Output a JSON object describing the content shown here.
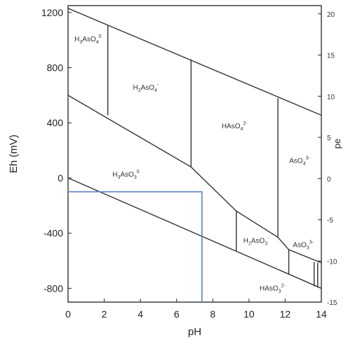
{
  "chart_data": {
    "type": "line",
    "xlabel": "pH",
    "ylabel": "Eh (mV)",
    "y2label": "pe",
    "xlim": [
      0,
      14
    ],
    "ylim": [
      -900,
      1250
    ],
    "y2lim": [
      -15,
      21
    ],
    "xticks": [
      "0",
      "2",
      "4",
      "6",
      "8",
      "10",
      "12",
      "14"
    ],
    "yticks": [
      "1200",
      "800",
      "400",
      "0",
      "-400",
      "-800"
    ],
    "y2ticks": [
      "20",
      "15",
      "10",
      "5",
      "0",
      "-5",
      "-10",
      "-15"
    ],
    "grid": false,
    "colors": {
      "frame": "#222222",
      "boundary": "#333333",
      "marker": "#5b7fc4"
    },
    "series": [
      {
        "x": [
          0,
          14
        ],
        "y": [
          1230,
          455
        ]
      },
      {
        "x": [
          0,
          14
        ],
        "y": [
          0,
          -800
        ]
      },
      {
        "x": [
          0,
          6.8,
          9.3,
          11.6,
          12.2,
          14
        ],
        "y": [
          600,
          80,
          -240,
          -430,
          -520,
          -615
        ]
      },
      {
        "x": [
          2.2,
          2.2
        ],
        "y": [
          1110,
          455
        ]
      },
      {
        "x": [
          6.8,
          6.8
        ],
        "y": [
          860,
          80
        ]
      },
      {
        "x": [
          11.6,
          11.6
        ],
        "y": [
          580,
          -430
        ]
      },
      {
        "x": [
          9.3,
          9.3
        ],
        "y": [
          -240,
          -530
        ]
      },
      {
        "x": [
          12.2,
          12.2
        ],
        "y": [
          -520,
          -700
        ]
      },
      {
        "x": [
          13.6,
          13.6
        ],
        "y": [
          -610,
          -785
        ]
      },
      {
        "x": [
          13.8,
          13.8
        ],
        "y": [
          -615,
          -795
        ]
      },
      {
        "x": [
          0,
          7.4,
          7.4
        ],
        "y": [
          -100,
          -100,
          -900
        ]
      }
    ],
    "region_labels": [
      {
        "base": "H",
        "sub1": "3",
        "mid": "AsO",
        "sub2": "4",
        "sup": "0",
        "x": 1.1,
        "y": 990
      },
      {
        "base": "H",
        "sub1": "2",
        "mid": "AsO",
        "sub2": "4",
        "sup": "-",
        "x": 4.3,
        "y": 640
      },
      {
        "base": "HAsO",
        "sub1": "",
        "mid": "",
        "sub2": "4",
        "sup": "2-",
        "x": 9.2,
        "y": 360
      },
      {
        "base": "AsO",
        "sub1": "",
        "mid": "",
        "sub2": "4",
        "sup": "3-",
        "x": 12.8,
        "y": 110
      },
      {
        "base": "H",
        "sub1": "3",
        "mid": "AsO",
        "sub2": "3",
        "sup": "0",
        "x": 3.2,
        "y": 10
      },
      {
        "base": "H",
        "sub1": "2",
        "mid": "AsO",
        "sub2": "3",
        "sup": "-",
        "x": 10.4,
        "y": -470
      },
      {
        "base": "AsO",
        "sub1": "",
        "mid": "",
        "sub2": "3",
        "sup": "3-",
        "x": 13.0,
        "y": -500
      },
      {
        "base": "HAsO",
        "sub1": "",
        "mid": "",
        "sub2": "3",
        "sup": "2-",
        "x": 11.3,
        "y": -815
      }
    ]
  }
}
